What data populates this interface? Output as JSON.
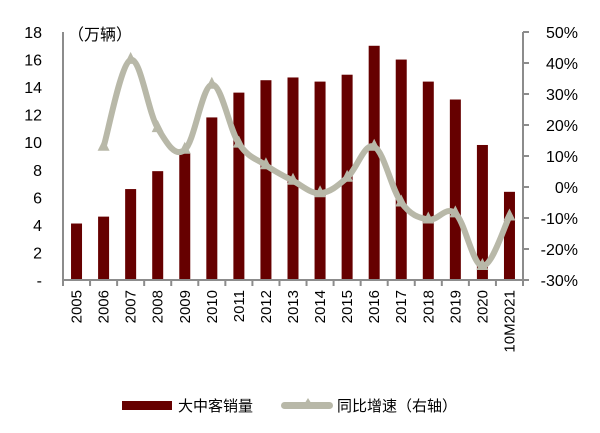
{
  "chart_data": {
    "type": "bar+line",
    "title": "",
    "unit_label": "（万辆）",
    "categories": [
      "2005",
      "2006",
      "2007",
      "2008",
      "2009",
      "2010",
      "2011",
      "2012",
      "2013",
      "2014",
      "2015",
      "2016",
      "2017",
      "2018",
      "2019",
      "2020",
      "10M2021"
    ],
    "series": [
      {
        "name": "大中客销量",
        "type": "bar",
        "axis": "left",
        "color": "#660000",
        "values": [
          4.1,
          4.6,
          6.6,
          7.9,
          9.2,
          11.8,
          13.6,
          14.5,
          14.7,
          14.4,
          14.9,
          17.0,
          16.0,
          14.4,
          13.1,
          9.8,
          6.4
        ]
      },
      {
        "name": "同比增速（右轴）",
        "type": "line",
        "axis": "right",
        "color": "#B8B8A8",
        "marker": "triangle",
        "values": [
          null,
          13,
          41,
          19,
          12,
          33,
          14,
          7,
          2,
          -2,
          3,
          13,
          -5,
          -10.5,
          -8.5,
          -25.5,
          -9.5
        ]
      }
    ],
    "left_axis": {
      "ylim": [
        0,
        18
      ],
      "ticks": [
        "-",
        "2",
        "4",
        "6",
        "8",
        "10",
        "12",
        "14",
        "16",
        "18"
      ],
      "label": "（万辆）"
    },
    "right_axis": {
      "ylim": [
        -30,
        50
      ],
      "ticks": [
        "-30%",
        "-20%",
        "-10%",
        "0%",
        "10%",
        "20%",
        "30%",
        "40%",
        "50%"
      ]
    },
    "xlabel": "",
    "grid": false,
    "legend_position": "bottom"
  },
  "legend": {
    "bar_label": "大中客销量",
    "line_label": "同比增速（右轴）"
  }
}
